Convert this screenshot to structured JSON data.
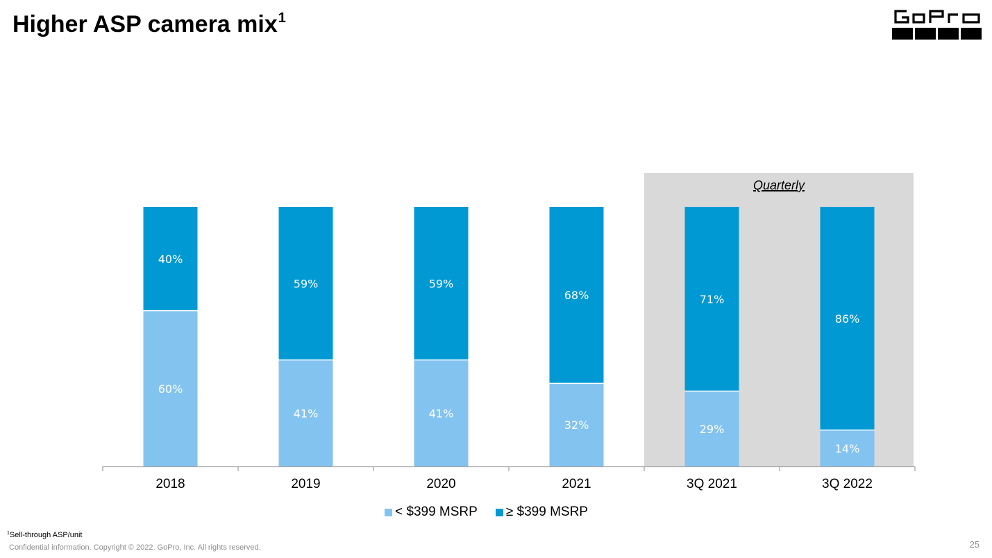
{
  "slide": {
    "title": "Higher ASP camera mix",
    "title_sup": "1",
    "footnote_sup": "1",
    "footnote": "Sell-through ASP/unit",
    "confidential": "Confidential information. Copyright © 2022. GoPro, Inc. All rights reserved.",
    "page_number": "25",
    "logo_text": "GoPro"
  },
  "chart_data": {
    "type": "bar",
    "stacked": true,
    "percent_stacked": true,
    "categories": [
      "2018",
      "2019",
      "2020",
      "2021",
      "3Q 2021",
      "3Q 2022"
    ],
    "series": [
      {
        "name": "< $399 MSRP",
        "color": "#83c3f0",
        "values": [
          60,
          41,
          41,
          32,
          29,
          14
        ],
        "labels": [
          "60%",
          "41%",
          "41%",
          "32%",
          "29%",
          "14%"
        ]
      },
      {
        "name": "≥ $399 MSRP",
        "color": "#0099d4",
        "values": [
          40,
          59,
          59,
          68,
          71,
          86
        ],
        "labels": [
          "40%",
          "59%",
          "59%",
          "68%",
          "71%",
          "86%"
        ]
      }
    ],
    "ylim": [
      0,
      100
    ],
    "grid": false,
    "legend": "bottom",
    "annotation": {
      "label": "Quarterly",
      "categories": [
        "3Q 2021",
        "3Q 2022"
      ],
      "background": "#d9d9d9"
    },
    "title": "",
    "xlabel": "",
    "ylabel": ""
  },
  "colors": {
    "light_blue": "#83c3f0",
    "dark_blue": "#0099d4",
    "quarterly_shade": "#d9d9d9",
    "axis": "#a6a6a6"
  }
}
